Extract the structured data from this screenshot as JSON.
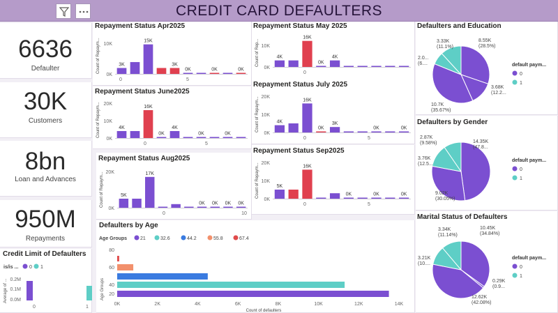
{
  "header": {
    "title": "CREDIT CARD DEFAULTERS",
    "filter_icon": "filter-icon",
    "more_icon": "more-options-icon"
  },
  "cards": [
    {
      "value": "6636",
      "label": "Defaulter"
    },
    {
      "value": "30K",
      "label": "Customers"
    },
    {
      "value": "8bn",
      "label": "Loan and Advances"
    },
    {
      "value": "950M",
      "label": "Repayments"
    }
  ],
  "credit_limit": {
    "title": "Credit Limit of Defaulters",
    "legend_title": "is/is ...",
    "legend": [
      {
        "name": "0",
        "color": "#7b4fd1"
      },
      {
        "name": "1",
        "color": "#4fd1c5"
      }
    ],
    "ylabel": "Average of ...",
    "yticks": [
      "0.2M",
      "0.1M",
      "0.0M"
    ],
    "xticks": [
      "0",
      "1"
    ]
  },
  "colors": {
    "purple": "#7b4fd1",
    "red": "#e0404f",
    "teal": "#5ecec6",
    "blue": "#3a7be0",
    "salmon": "#f2906c",
    "darkred": "#e04b4b"
  },
  "chart_data": [
    {
      "type": "bar",
      "id": "apr",
      "title": "Repayment Status Apr2025",
      "ylabel": "Count of Repaym...",
      "yticks": [
        "10K",
        "0K"
      ],
      "ylim": [
        0,
        17000
      ],
      "xticks": [
        "0",
        "5"
      ],
      "values": [
        3000,
        6000,
        15000,
        3000,
        3000,
        0,
        0,
        0,
        0,
        0
      ],
      "labels": [
        "3K",
        "",
        "15K",
        "",
        "3K",
        "0K",
        "",
        "0K",
        "",
        "0K"
      ],
      "colors": [
        "purple",
        "purple",
        "purple",
        "red",
        "red",
        "purple",
        "purple",
        "red",
        "purple",
        "red"
      ]
    },
    {
      "type": "bar",
      "id": "may",
      "title": "Repayment Status May 2025",
      "ylabel": "Count of Rep...",
      "yticks": [
        "10K",
        "0K"
      ],
      "ylim": [
        0,
        18000
      ],
      "xticks": [
        "0"
      ],
      "values": [
        4000,
        4000,
        16000,
        0,
        4000,
        0,
        0,
        0,
        0,
        0
      ],
      "labels": [
        "4K",
        "",
        "16K",
        "0K",
        "4K",
        "",
        "",
        "",
        "",
        ""
      ],
      "colors": [
        "purple",
        "purple",
        "red",
        "purple",
        "purple",
        "purple",
        "purple",
        "purple",
        "purple",
        "purple"
      ]
    },
    {
      "type": "bar",
      "id": "june",
      "title": "Repayment Status June2025",
      "ylabel": "Count of Repaym...",
      "yticks": [
        "20K",
        "10K",
        "0K"
      ],
      "ylim": [
        0,
        20000
      ],
      "xticks": [
        "0",
        "5"
      ],
      "values": [
        4000,
        4000,
        16000,
        0,
        4000,
        0,
        0,
        0,
        0,
        0
      ],
      "labels": [
        "4K",
        "",
        "16K",
        "0K",
        "4K",
        "",
        "0K",
        "",
        "0K",
        ""
      ],
      "colors": [
        "purple",
        "purple",
        "red",
        "purple",
        "purple",
        "purple",
        "purple",
        "purple",
        "purple",
        "purple"
      ]
    },
    {
      "type": "bar",
      "id": "july",
      "title": "Repayment Status July 2025",
      "ylabel": "Count of Repaym...",
      "yticks": [
        "20K",
        "10K",
        "0K"
      ],
      "ylim": [
        0,
        20000
      ],
      "xticks": [
        "0",
        "5"
      ],
      "values": [
        4000,
        5000,
        16000,
        0,
        3000,
        0,
        0,
        0,
        0,
        0
      ],
      "labels": [
        "4K",
        "",
        "16K",
        "0K",
        "3K",
        "",
        "",
        "0K",
        "",
        "0K"
      ],
      "colors": [
        "purple",
        "purple",
        "purple",
        "red",
        "purple",
        "purple",
        "purple",
        "purple",
        "purple",
        "purple"
      ]
    },
    {
      "type": "bar",
      "id": "aug",
      "title": "Repayment Status Aug2025",
      "ylabel": "Count of Repaym...",
      "yticks": [
        "20K",
        "0K"
      ],
      "ylim": [
        0,
        20000
      ],
      "xticks": [
        "0",
        "10"
      ],
      "values": [
        5000,
        5000,
        17000,
        0,
        2000,
        0,
        0,
        0,
        0,
        0
      ],
      "labels": [
        "5K",
        "",
        "17K",
        "",
        "",
        "",
        "0K",
        "0K",
        "0K",
        "0K"
      ],
      "colors": [
        "purple",
        "purple",
        "purple",
        "purple",
        "purple",
        "purple",
        "purple",
        "purple",
        "purple",
        "purple"
      ]
    },
    {
      "type": "bar",
      "id": "sep",
      "title": "Repayment Status Sep2025",
      "ylabel": "Count of Repaym...",
      "yticks": [
        "20K",
        "10K",
        "0K"
      ],
      "ylim": [
        0,
        20000
      ],
      "xticks": [
        "0",
        "5"
      ],
      "values": [
        5000,
        5000,
        16000,
        0,
        3000,
        0,
        0,
        0,
        0,
        0
      ],
      "labels": [
        "5K",
        "",
        "16K",
        "",
        "",
        "0K",
        "",
        "0K",
        "",
        "0K"
      ],
      "colors": [
        "purple",
        "red",
        "red",
        "purple",
        "purple",
        "purple",
        "purple",
        "purple",
        "purple",
        "purple"
      ]
    },
    {
      "type": "bar-horizontal",
      "id": "age",
      "title": "Defaulters by Age",
      "legend_title": "Age Groups",
      "legend": [
        {
          "name": "21",
          "color": "purple"
        },
        {
          "name": "32.6",
          "color": "teal"
        },
        {
          "name": "44.2",
          "color": "blue"
        },
        {
          "name": "55.8",
          "color": "salmon"
        },
        {
          "name": "67.4",
          "color": "darkred"
        }
      ],
      "ylabel": "Age Groups",
      "yticks": [
        "80",
        "60",
        "40",
        "20"
      ],
      "xlabel": "Count of defaulters",
      "xticks": [
        "0K",
        "2K",
        "4K",
        "6K",
        "8K",
        "10K",
        "12K",
        "14K"
      ],
      "xlim": [
        0,
        14000
      ],
      "categories": [
        "21",
        "32.6",
        "44.2",
        "55.8",
        "67.4"
      ],
      "values": [
        13500,
        11300,
        4500,
        800,
        100
      ]
    },
    {
      "type": "pie",
      "id": "edu",
      "title": "Defaulters and Education",
      "legend_title": "default paym...",
      "legend": [
        {
          "name": "0",
          "color": "purple"
        },
        {
          "name": "1",
          "color": "teal"
        }
      ],
      "slices": [
        {
          "value": 8550,
          "label1": "8.55K",
          "label2": "(28.5%)",
          "color": "purple"
        },
        {
          "value": 3680,
          "label1": "3.68K",
          "label2": "(12.2...",
          "color": "purple"
        },
        {
          "value": 10700,
          "label1": "10.7K",
          "label2": "(35.67%)",
          "color": "purple"
        },
        {
          "value": 2000,
          "label1": "2.0...",
          "label2": "(6....",
          "color": "teal"
        },
        {
          "value": 3330,
          "label1": "3.33K",
          "label2": "(11.1%)",
          "color": "teal"
        }
      ]
    },
    {
      "type": "pie",
      "id": "gender",
      "title": "Defaulters by Gender",
      "legend_title": "default paym...",
      "legend": [
        {
          "name": "0",
          "color": "purple"
        },
        {
          "name": "1",
          "color": "teal"
        }
      ],
      "slices": [
        {
          "value": 14350,
          "label1": "14.35K",
          "label2": "(47.8...",
          "color": "purple"
        },
        {
          "value": 9020,
          "label1": "9.02K",
          "label2": "(30.05%)",
          "color": "purple"
        },
        {
          "value": 3760,
          "label1": "3.76K",
          "label2": "(12.5...",
          "color": "teal"
        },
        {
          "value": 2870,
          "label1": "2.87K",
          "label2": "(9.58%)",
          "color": "teal"
        }
      ]
    },
    {
      "type": "pie",
      "id": "marital",
      "title": "Marital Status of Defaulters",
      "legend_title": "default paym...",
      "legend": [
        {
          "name": "0",
          "color": "purple"
        },
        {
          "name": "1",
          "color": "teal"
        }
      ],
      "slices": [
        {
          "value": 10450,
          "label1": "10.45K",
          "label2": "(34.84%)",
          "color": "purple"
        },
        {
          "value": 290,
          "label1": "0.29K",
          "label2": "(0.9...",
          "color": "purple"
        },
        {
          "value": 12620,
          "label1": "12.62K",
          "label2": "(42.08%)",
          "color": "purple"
        },
        {
          "value": 3210,
          "label1": "3.21K",
          "label2": "(10....",
          "color": "teal"
        },
        {
          "value": 3340,
          "label1": "3.34K",
          "label2": "(11.14%)",
          "color": "teal"
        }
      ]
    }
  ]
}
